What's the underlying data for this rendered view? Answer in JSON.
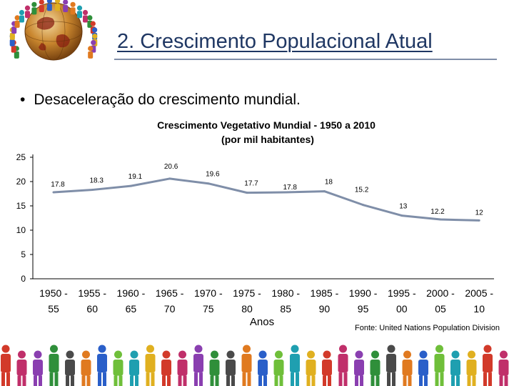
{
  "slide": {
    "title": "2. Crescimento Populacional Atual",
    "bullet": "Desaceleração do crescimento mundial.",
    "source": "Fonte: United  Nations Population Division"
  },
  "icons": {
    "logo": "globe-with-people-icon",
    "footer": "people-figures-icon",
    "bullet": "bullet-dot-icon"
  },
  "colors": {
    "title": "#1f3763",
    "line": "#7f8ea8",
    "axis": "#000000"
  },
  "chart_data": {
    "type": "line",
    "title_line1": "Crescimento Vegetativo Mundial - 1950 a 2010",
    "title_line2": "(por mil habitantes)",
    "xlabel": "Anos",
    "ylabel": "",
    "ylim": [
      0,
      25
    ],
    "yticks": [
      "0",
      "5",
      "10",
      "15",
      "20",
      "25"
    ],
    "grid": false,
    "categories": [
      [
        "1950 -",
        "55"
      ],
      [
        "1955 -",
        "60"
      ],
      [
        "1960 -",
        "65"
      ],
      [
        "1965 -",
        "70"
      ],
      [
        "1970 -",
        "75"
      ],
      [
        "1975 -",
        "80"
      ],
      [
        "1980 -",
        "85"
      ],
      [
        "1985 -",
        "90"
      ],
      [
        "1990 -",
        "95"
      ],
      [
        "1995 -",
        "00"
      ],
      [
        "2000 -",
        "05"
      ],
      [
        "2005 -",
        "10"
      ]
    ],
    "values": [
      17.8,
      18.3,
      19.1,
      20.6,
      19.6,
      17.7,
      17.8,
      18,
      15.2,
      13,
      12.2,
      12
    ],
    "value_labels": [
      "17.8",
      "18.3",
      "19.1",
      "20.6",
      "19.6",
      "17.7",
      "17.8",
      "18",
      "15.2",
      "13",
      "12.2",
      "12"
    ]
  }
}
